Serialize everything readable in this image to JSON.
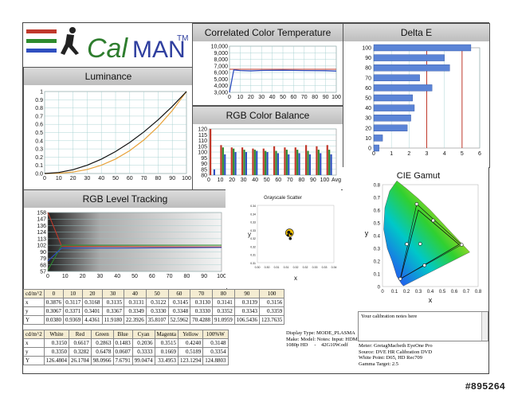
{
  "logo": {
    "text_cal": "Cal",
    "text_man": "MAN",
    "tm": "TM"
  },
  "luminance": {
    "title": "Luminance",
    "y_ticks": [
      "1",
      "0.9",
      "0.8",
      "0.7",
      "0.6",
      "0.5",
      "0.4",
      "0.3",
      "0.2",
      "0.1",
      "0.0"
    ],
    "x_ticks": [
      "0",
      "10",
      "20",
      "30",
      "40",
      "50",
      "60",
      "70",
      "80",
      "90",
      "100"
    ]
  },
  "cct": {
    "title": "Correlated Color Temperature",
    "y_ticks": [
      "10,000",
      "9,000",
      "8,000",
      "7,000",
      "6,000",
      "5,000",
      "4,000",
      "3,000"
    ],
    "x_ticks": [
      "0",
      "10",
      "20",
      "30",
      "40",
      "50",
      "60",
      "70",
      "80",
      "90",
      "100"
    ]
  },
  "rgb_balance": {
    "title": "RGB Color Balance",
    "y_ticks": [
      "120",
      "115",
      "110",
      "105",
      "100",
      "95",
      "90",
      "85",
      "80"
    ],
    "x_ticks": [
      "0",
      "10",
      "20",
      "30",
      "40",
      "50",
      "60",
      "70",
      "80",
      "90",
      "100",
      "Avg"
    ]
  },
  "delta_e": {
    "title": "Delta E",
    "y_ticks": [
      "100",
      "90",
      "80",
      "70",
      "60",
      "50",
      "40",
      "30",
      "20",
      "10",
      "0"
    ],
    "x_ticks": [
      "0",
      "1",
      "2",
      "3",
      "4",
      "5",
      "6"
    ]
  },
  "level_tracking": {
    "title": "RGB Level Tracking",
    "y_ticks": [
      "158",
      "147",
      "136",
      "124",
      "113",
      "102",
      "90",
      "79",
      "68",
      "57"
    ],
    "x_ticks": [
      "0",
      "10",
      "20",
      "30",
      "40",
      "50",
      "60",
      "70",
      "80",
      "90",
      "100"
    ]
  },
  "grayscale_scatter": {
    "title": "Grayscale Scatter",
    "x_label": "x",
    "y_label": "y",
    "x_ticks": [
      "0.30",
      "0.30",
      "0.31",
      "0.31",
      "0.32",
      "0.32",
      "0.33",
      "0.33",
      "0.34"
    ],
    "y_ticks": [
      "0.34",
      "0.34",
      "0.33",
      "0.33",
      "0.32",
      "0.32",
      "0.31",
      "0.31"
    ]
  },
  "cie": {
    "title": "CIE Gamut",
    "x_label": "x",
    "y_label": "y",
    "x_ticks": [
      "0",
      "0.1",
      "0.2",
      "0.3",
      "0.4",
      "0.5",
      "0.6",
      "0.7",
      "0.8"
    ],
    "y_ticks": [
      "0.8",
      "0.7",
      "0.6",
      "0.5",
      "0.4",
      "0.3",
      "0.2",
      "0.1",
      "0"
    ]
  },
  "table1": {
    "header": [
      "cd/m^2",
      "0",
      "10",
      "20",
      "30",
      "40",
      "50",
      "60",
      "70",
      "80",
      "90",
      "100"
    ],
    "rows": [
      [
        "x",
        "0.3876",
        "0.3117",
        "0.3168",
        "0.3135",
        "0.3131",
        "0.3122",
        "0.3145",
        "0.3130",
        "0.3141",
        "0.3139",
        "0.3156"
      ],
      [
        "y",
        "0.3067",
        "0.3371",
        "0.3401",
        "0.3367",
        "0.3349",
        "0.3330",
        "0.3348",
        "0.3330",
        "0.3352",
        "0.3343",
        "0.3359"
      ],
      [
        "Y",
        "0.0380",
        "0.9369",
        "4.4361",
        "11.9180",
        "22.3926",
        "35.8107",
        "52.5962",
        "70.4288",
        "91.0959",
        "106.5436",
        "123.7635"
      ]
    ]
  },
  "table2": {
    "header": [
      "cd/m^2",
      "White",
      "Red",
      "Green",
      "Blue",
      "Cyan",
      "Magenta",
      "Yellow",
      "100%W"
    ],
    "rows": [
      [
        "x",
        "0.3150",
        "0.6617",
        "0.2863",
        "0.1483",
        "0.2036",
        "0.3515",
        "0.4240",
        "0.3148"
      ],
      [
        "y",
        "0.3350",
        "0.3282",
        "0.6478",
        "0.0607",
        "0.3333",
        "0.1669",
        "0.5189",
        "0.3354"
      ],
      [
        "Y",
        "126.4804",
        "26.1704",
        "98.0966",
        "7.6791",
        "99.0474",
        "33.4953",
        "123.1294",
        "124.8803"
      ]
    ]
  },
  "display_info": "Display Type: MODE_PLASMA\nMake: Model: Notes: Input: HDMI\n1080p HD     -    42G10W.odf",
  "notes": {
    "text": "Your calibration notes here"
  },
  "meter_info": "Meter: GretagMacbeth EyeOne Pro\nSource: DVE HR Calibration DVD\nWhite Point: D65, HD Rec709\nGamma Target: 2.5",
  "watermark": "#895264",
  "colors": {
    "red": "#c0392b",
    "green": "#2e8b2e",
    "blue": "#2f4fc0",
    "bar": "#5b84d6"
  }
}
